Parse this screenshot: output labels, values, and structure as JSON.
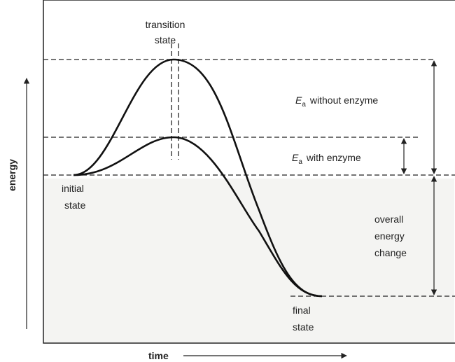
{
  "diagram": {
    "transition_state": [
      "transition",
      "state"
    ],
    "ea_without": {
      "symbol": "E",
      "subscript": "a",
      "text": "without enzyme"
    },
    "ea_with": {
      "symbol": "E",
      "subscript": "a",
      "text": "with enzyme"
    },
    "initial_state": [
      "initial",
      "state"
    ],
    "overall_change": [
      "overall",
      "energy",
      "change"
    ],
    "final_state": [
      "final",
      "state"
    ],
    "y_axis": "energy",
    "x_axis": "time"
  }
}
